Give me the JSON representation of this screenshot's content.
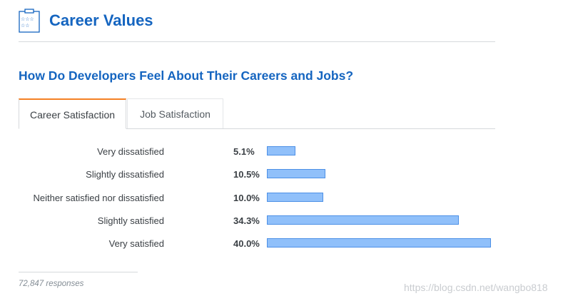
{
  "header": {
    "title": "Career Values",
    "icon": "star-rating-card-icon"
  },
  "section": {
    "title": "How Do Developers Feel About Their Careers and Jobs?"
  },
  "tabs": [
    {
      "label": "Career Satisfaction",
      "active": true
    },
    {
      "label": "Job Satisfaction",
      "active": false
    }
  ],
  "chart_data": {
    "type": "bar",
    "orientation": "horizontal",
    "categories": [
      "Very dissatisfied",
      "Slightly dissatisfied",
      "Neither satisfied nor dissatisfied",
      "Slightly satisfied",
      "Very satisfied"
    ],
    "values": [
      5.1,
      10.5,
      10.0,
      34.3,
      40.0
    ],
    "value_labels": [
      "5.1%",
      "10.5%",
      "10.0%",
      "34.3%",
      "40.0%"
    ],
    "xlim": [
      0,
      40
    ],
    "grid": false,
    "bar_color": "#90c0fa",
    "bar_border_color": "#4d90e6"
  },
  "footer": {
    "responses": "72,847 responses"
  },
  "watermark": "https://blog.csdn.net/wangbo818",
  "colors": {
    "accent": "#1565c0",
    "active_tab": "#f48024"
  }
}
